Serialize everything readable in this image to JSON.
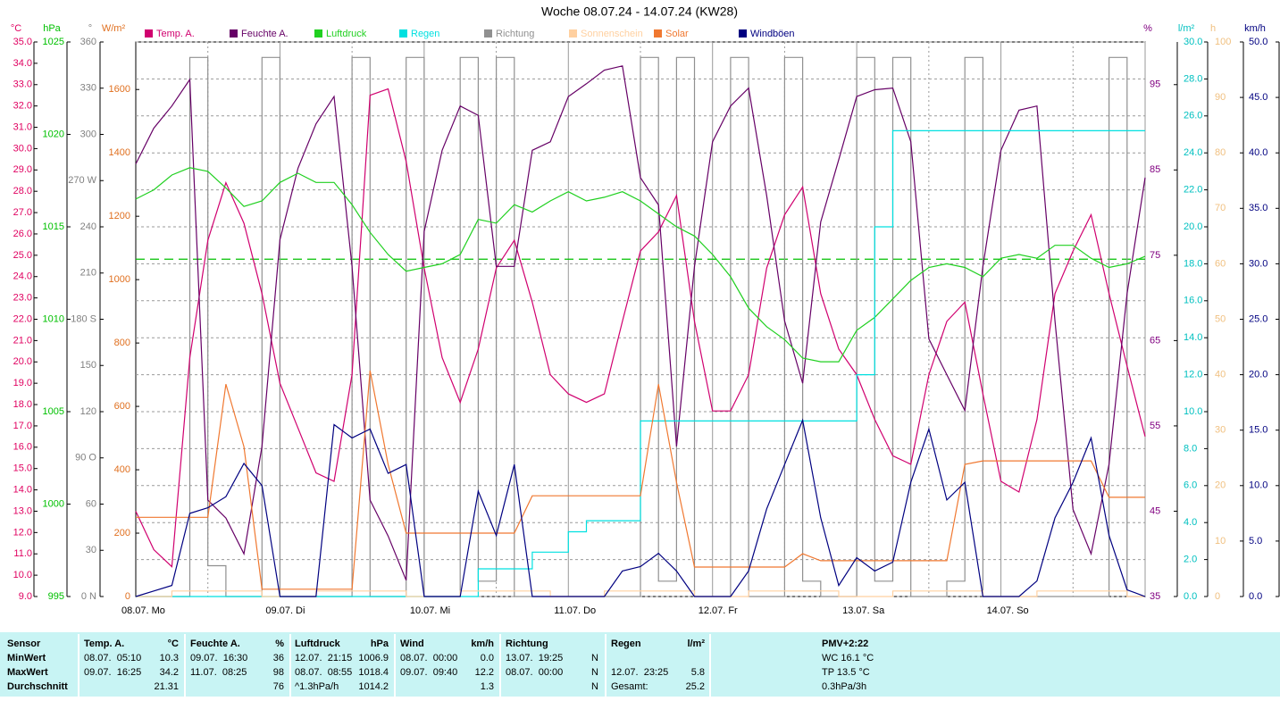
{
  "chart_data": {
    "type": "line",
    "title": "Woche 08.07.24 - 14.07.24 (KW28)",
    "categories": [
      "08.07. Mo",
      null,
      null,
      null,
      null,
      null,
      null,
      null,
      "09.07. Di",
      null,
      null,
      null,
      null,
      null,
      null,
      null,
      "10.07. Mi",
      null,
      null,
      null,
      null,
      null,
      null,
      null,
      "11.07. Do",
      null,
      null,
      null,
      null,
      null,
      null,
      null,
      "12.07. Fr",
      null,
      null,
      null,
      null,
      null,
      null,
      null,
      "13.07. Sa",
      null,
      null,
      null,
      null,
      null,
      null,
      null,
      "14.07. So",
      null,
      null,
      null,
      null,
      null,
      null,
      null,
      null
    ],
    "axes": [
      {
        "unit": "°C",
        "color": "#e00060",
        "lim": [
          9,
          35
        ],
        "ticks": [
          {
            "value": 9,
            "label": "9.0"
          },
          {
            "value": 10,
            "label": "10.0"
          },
          {
            "value": 11,
            "label": "11.0"
          },
          {
            "value": 12,
            "label": "12.0"
          },
          {
            "value": 13,
            "label": "13.0"
          },
          {
            "value": 14,
            "label": "14.0"
          },
          {
            "value": 15,
            "label": "15.0"
          },
          {
            "value": 16,
            "label": "16.0"
          },
          {
            "value": 17,
            "label": "17.0"
          },
          {
            "value": 18,
            "label": "18.0"
          },
          {
            "value": 19,
            "label": "19.0"
          },
          {
            "value": 20,
            "label": "20.0"
          },
          {
            "value": 21,
            "label": "21.0"
          },
          {
            "value": 22,
            "label": "22.0"
          },
          {
            "value": 23,
            "label": "23.0"
          },
          {
            "value": 24,
            "label": "24.0"
          },
          {
            "value": 25,
            "label": "25.0"
          },
          {
            "value": 26,
            "label": "26.0"
          },
          {
            "value": 27,
            "label": "27.0"
          },
          {
            "value": 28,
            "label": "28.0"
          },
          {
            "value": 29,
            "label": "29.0"
          },
          {
            "value": 30,
            "label": "30.0"
          },
          {
            "value": 31,
            "label": "31.0"
          },
          {
            "value": 32,
            "label": "32.0"
          },
          {
            "value": 33,
            "label": "33.0"
          },
          {
            "value": 34,
            "label": "34.0"
          },
          {
            "value": 35,
            "label": "35.0"
          }
        ]
      },
      {
        "unit": "hPa",
        "color": "#00c000",
        "lim": [
          995,
          1025
        ],
        "ticks": [
          995,
          1000,
          1005,
          1010,
          1015,
          1020,
          1025
        ]
      },
      {
        "unit": "°",
        "color": "#808080",
        "lim": [
          0,
          360
        ],
        "ticks": [
          {
            "value": 0,
            "label": "0 N"
          },
          30,
          60,
          {
            "value": 90,
            "label": "90 O"
          },
          120,
          150,
          {
            "value": 180,
            "label": "180 S"
          },
          210,
          240,
          {
            "value": 270,
            "label": "270 W"
          },
          300,
          330,
          360
        ]
      },
      {
        "unit": "W/m²",
        "color": "#e07020",
        "lim": [
          0,
          1750
        ],
        "ticks": [
          0,
          200,
          400,
          600,
          800,
          1000,
          1200,
          1400,
          1600
        ]
      },
      {
        "unit": "%",
        "color": "#800080",
        "lim": [
          35,
          100
        ],
        "ticks": [
          35,
          45,
          55,
          65,
          75,
          85,
          95
        ]
      },
      {
        "unit": "l/m²",
        "color": "#00c0c0",
        "lim": [
          0,
          30
        ],
        "grid": true,
        "ticks": [
          {
            "value": 0,
            "label": "0.0"
          },
          {
            "value": 2,
            "label": "2.0"
          },
          {
            "value": 4,
            "label": "4.0"
          },
          {
            "value": 6,
            "label": "6.0"
          },
          {
            "value": 8,
            "label": "8.0"
          },
          {
            "value": 10,
            "label": "10.0"
          },
          {
            "value": 12,
            "label": "12.0"
          },
          {
            "value": 14,
            "label": "14.0"
          },
          {
            "value": 16,
            "label": "16.0"
          },
          {
            "value": 18,
            "label": "18.0"
          },
          {
            "value": 20,
            "label": "20.0"
          },
          {
            "value": 22,
            "label": "22.0"
          },
          {
            "value": 24,
            "label": "24.0"
          },
          {
            "value": 26,
            "label": "26.0"
          },
          {
            "value": 28,
            "label": "28.0"
          },
          {
            "value": 30,
            "label": "30.0"
          }
        ]
      },
      {
        "unit": "h",
        "color": "#f0c080",
        "lim": [
          0,
          100
        ],
        "ticks": [
          0,
          10,
          20,
          30,
          40,
          50,
          60,
          70,
          80,
          90,
          100
        ]
      },
      {
        "unit": "km/h",
        "color": "#000080",
        "lim": [
          0,
          50
        ],
        "ticks": [
          {
            "value": 0,
            "label": "0.0"
          },
          {
            "value": 5,
            "label": "5.0"
          },
          {
            "value": 10,
            "label": "10.0"
          },
          {
            "value": 15,
            "label": "15.0"
          },
          {
            "value": 20,
            "label": "20.0"
          },
          {
            "value": 25,
            "label": "25.0"
          },
          {
            "value": 30,
            "label": "30.0"
          },
          {
            "value": 35,
            "label": "35.0"
          },
          {
            "value": 40,
            "label": "40.0"
          },
          {
            "value": 45,
            "label": "45.0"
          },
          {
            "value": 50,
            "label": "50.0"
          }
        ]
      }
    ],
    "ref_line": {
      "axis": 1,
      "value": 1013.25,
      "color": "#00c000",
      "dashed": true
    },
    "series": [
      {
        "name": "Temp. A.",
        "color": "#d0006f",
        "axis": 0,
        "style": "line",
        "values": [
          13.0,
          11.2,
          10.4,
          20.2,
          25.7,
          28.4,
          26.5,
          23.2,
          19.0,
          16.9,
          14.8,
          14.4,
          19.4,
          32.5,
          32.8,
          29.4,
          24.4,
          20.2,
          18.1,
          20.6,
          24.4,
          25.7,
          22.8,
          19.4,
          18.5,
          18.1,
          18.5,
          21.9,
          25.2,
          26.1,
          27.8,
          21.9,
          17.7,
          17.7,
          19.4,
          24.4,
          26.9,
          28.2,
          23.2,
          20.6,
          19.4,
          17.3,
          15.6,
          15.2,
          19.4,
          21.9,
          22.8,
          18.5,
          14.4,
          13.9,
          17.3,
          23.2,
          25.2,
          26.9,
          23.2,
          19.8,
          16.5
        ]
      },
      {
        "name": "Feuchte A.",
        "color": "#660066",
        "axis": 4,
        "style": "line",
        "values": [
          85.7,
          89.9,
          92.5,
          95.6,
          46.3,
          44.2,
          40.0,
          52.6,
          76.8,
          85.2,
          90.4,
          93.6,
          73.7,
          46.3,
          42.1,
          36.9,
          77.8,
          87.3,
          92.5,
          91.4,
          73.7,
          73.7,
          87.3,
          88.3,
          93.6,
          95.1,
          96.7,
          97.2,
          84.1,
          80.9,
          52.6,
          73.7,
          88.3,
          92.5,
          94.6,
          82.0,
          67.3,
          60.0,
          78.9,
          86.2,
          93.6,
          94.4,
          94.6,
          88.3,
          65.2,
          61.0,
          56.8,
          73.7,
          87.3,
          92.0,
          92.5,
          67.3,
          45.2,
          40.0,
          50.5,
          70.5,
          84.1
        ]
      },
      {
        "name": "Luftdruck",
        "color": "#20d020",
        "axis": 1,
        "style": "line",
        "values": [
          1016.5,
          1017.0,
          1017.8,
          1018.2,
          1018.0,
          1017.1,
          1016.1,
          1016.4,
          1017.4,
          1017.9,
          1017.4,
          1017.4,
          1016.2,
          1014.7,
          1013.5,
          1012.6,
          1012.8,
          1013.0,
          1013.5,
          1015.4,
          1015.2,
          1016.2,
          1015.8,
          1016.4,
          1016.9,
          1016.4,
          1016.6,
          1016.9,
          1016.4,
          1015.7,
          1015.0,
          1014.5,
          1013.5,
          1012.3,
          1010.6,
          1009.6,
          1008.9,
          1007.9,
          1007.7,
          1007.7,
          1009.4,
          1010.1,
          1011.1,
          1012.1,
          1012.8,
          1013.0,
          1012.8,
          1012.3,
          1013.3,
          1013.5,
          1013.3,
          1014.0,
          1014.0,
          1013.3,
          1012.8,
          1013.0,
          1013.4
        ]
      },
      {
        "name": "Regen",
        "color": "#00e0e0",
        "axis": 5,
        "style": "step",
        "values": [
          0,
          0,
          0,
          0,
          0,
          0,
          0,
          0,
          0,
          0,
          0,
          0,
          0,
          0,
          0,
          0,
          0,
          0,
          0,
          1.5,
          1.5,
          1.5,
          2.4,
          2.4,
          3.5,
          4.1,
          4.1,
          4.1,
          9.5,
          9.5,
          9.5,
          9.5,
          9.5,
          9.5,
          9.5,
          9.5,
          9.5,
          9.5,
          9.5,
          9.5,
          12.0,
          20.0,
          25.2,
          25.2,
          25.2,
          25.2,
          25.2,
          25.2,
          25.2,
          25.2,
          25.2,
          25.2,
          25.2,
          25.2,
          25.2,
          25.2,
          25.2
        ]
      },
      {
        "name": "Richtung",
        "color": "#909090",
        "axis": 2,
        "style": "step",
        "back": true,
        "values": [
          0,
          0,
          0,
          350,
          20,
          0,
          0,
          350,
          0,
          0,
          0,
          0,
          350,
          0,
          0,
          350,
          0,
          0,
          350,
          10,
          350,
          0,
          0,
          0,
          0,
          0,
          0,
          0,
          350,
          10,
          350,
          0,
          0,
          350,
          0,
          0,
          350,
          10,
          0,
          0,
          350,
          10,
          350,
          0,
          0,
          10,
          350,
          0,
          0,
          0,
          0,
          0,
          0,
          0,
          350,
          0,
          0
        ]
      },
      {
        "name": "Sonnenschein",
        "color": "#ffd0a0",
        "axis": 6,
        "style": "step",
        "values": [
          0,
          0,
          1,
          1,
          1,
          1,
          1,
          0,
          0,
          0,
          1,
          1,
          1,
          1,
          1,
          0,
          0,
          0,
          1,
          1,
          1,
          1,
          1,
          0,
          0,
          0,
          1,
          1,
          1,
          1,
          1,
          0,
          0,
          0,
          1,
          1,
          1,
          1,
          1,
          0,
          0,
          0,
          1,
          1,
          1,
          1,
          1,
          0,
          0,
          0,
          1,
          1,
          1,
          1,
          1,
          0,
          0
        ]
      },
      {
        "name": "Solar",
        "color": "#f07830",
        "axis": 3,
        "style": "line",
        "values": [
          250,
          250,
          250,
          250,
          250,
          670,
          473,
          23,
          23,
          23,
          23,
          23,
          23,
          713,
          417,
          200,
          200,
          200,
          200,
          200,
          200,
          200,
          318,
          318,
          318,
          318,
          318,
          318,
          318,
          670,
          360,
          93,
          93,
          93,
          93,
          93,
          93,
          135,
          113,
          113,
          113,
          113,
          113,
          113,
          113,
          113,
          417,
          428,
          428,
          428,
          428,
          428,
          428,
          428,
          313,
          313,
          313
        ]
      },
      {
        "name": "Windböen",
        "color": "#000080",
        "axis": 7,
        "style": "line",
        "values": [
          0,
          0.5,
          1,
          7.5,
          8,
          9,
          12,
          10,
          0,
          0,
          0,
          15.5,
          14.3,
          15.1,
          11.1,
          11.9,
          0,
          0,
          0,
          9.5,
          5.5,
          11.9,
          0,
          0,
          0,
          0,
          0,
          2.3,
          2.7,
          3.9,
          2.3,
          0,
          0,
          0,
          2.3,
          7.9,
          11.9,
          15.9,
          7.1,
          1.0,
          3.5,
          2.3,
          3.1,
          10.3,
          15.1,
          8.7,
          10.3,
          0,
          0,
          0,
          1.4,
          7.1,
          10.3,
          14.3,
          5.5,
          0.6,
          0
        ]
      }
    ]
  },
  "table": {
    "row_labels": [
      "Sensor",
      "MinWert",
      "MaxWert",
      "Durchschnitt"
    ],
    "groups": [
      {
        "title": "Temp. A.",
        "unit": "°C",
        "rows": [
          [
            "08.07.  05:10",
            "10.3"
          ],
          [
            "09.07.  16:25",
            "34.2"
          ],
          [
            "21.31"
          ]
        ]
      },
      {
        "title": "Feuchte A.",
        "unit": "%",
        "rows": [
          [
            "09.07.  16:30",
            "36"
          ],
          [
            "11.07.  08:25",
            "98"
          ],
          [
            "76"
          ]
        ]
      },
      {
        "title": "Luftdruck",
        "unit": "hPa",
        "rows": [
          [
            "12.07.  21:15",
            "1006.9"
          ],
          [
            "08.07.  08:55",
            "1018.4"
          ],
          [
            "^1.3hPa/h",
            "1014.2"
          ]
        ]
      },
      {
        "title": "Wind",
        "unit": "km/h",
        "rows": [
          [
            "08.07.  00:00",
            "0.0"
          ],
          [
            "09.07.  09:40",
            "12.2"
          ],
          [
            "1.3"
          ]
        ]
      },
      {
        "title": "Richtung",
        "rows": [
          [
            "13.07.  19:25",
            "N"
          ],
          [
            "08.07.  00:00",
            "N"
          ],
          [
            "N"
          ]
        ]
      },
      {
        "title": "Regen",
        "unit": "l/m²",
        "rows": [
          null,
          [
            "12.07.  23:25",
            "5.8"
          ],
          [
            "Gesamt:",
            "25.2"
          ]
        ]
      },
      {
        "title": "PMV+2:22",
        "align": "left",
        "rows": [
          [
            "WC 16.1 °C"
          ],
          [
            "TP 13.5 °C"
          ],
          [
            "0.3hPa/3h"
          ]
        ]
      }
    ]
  }
}
